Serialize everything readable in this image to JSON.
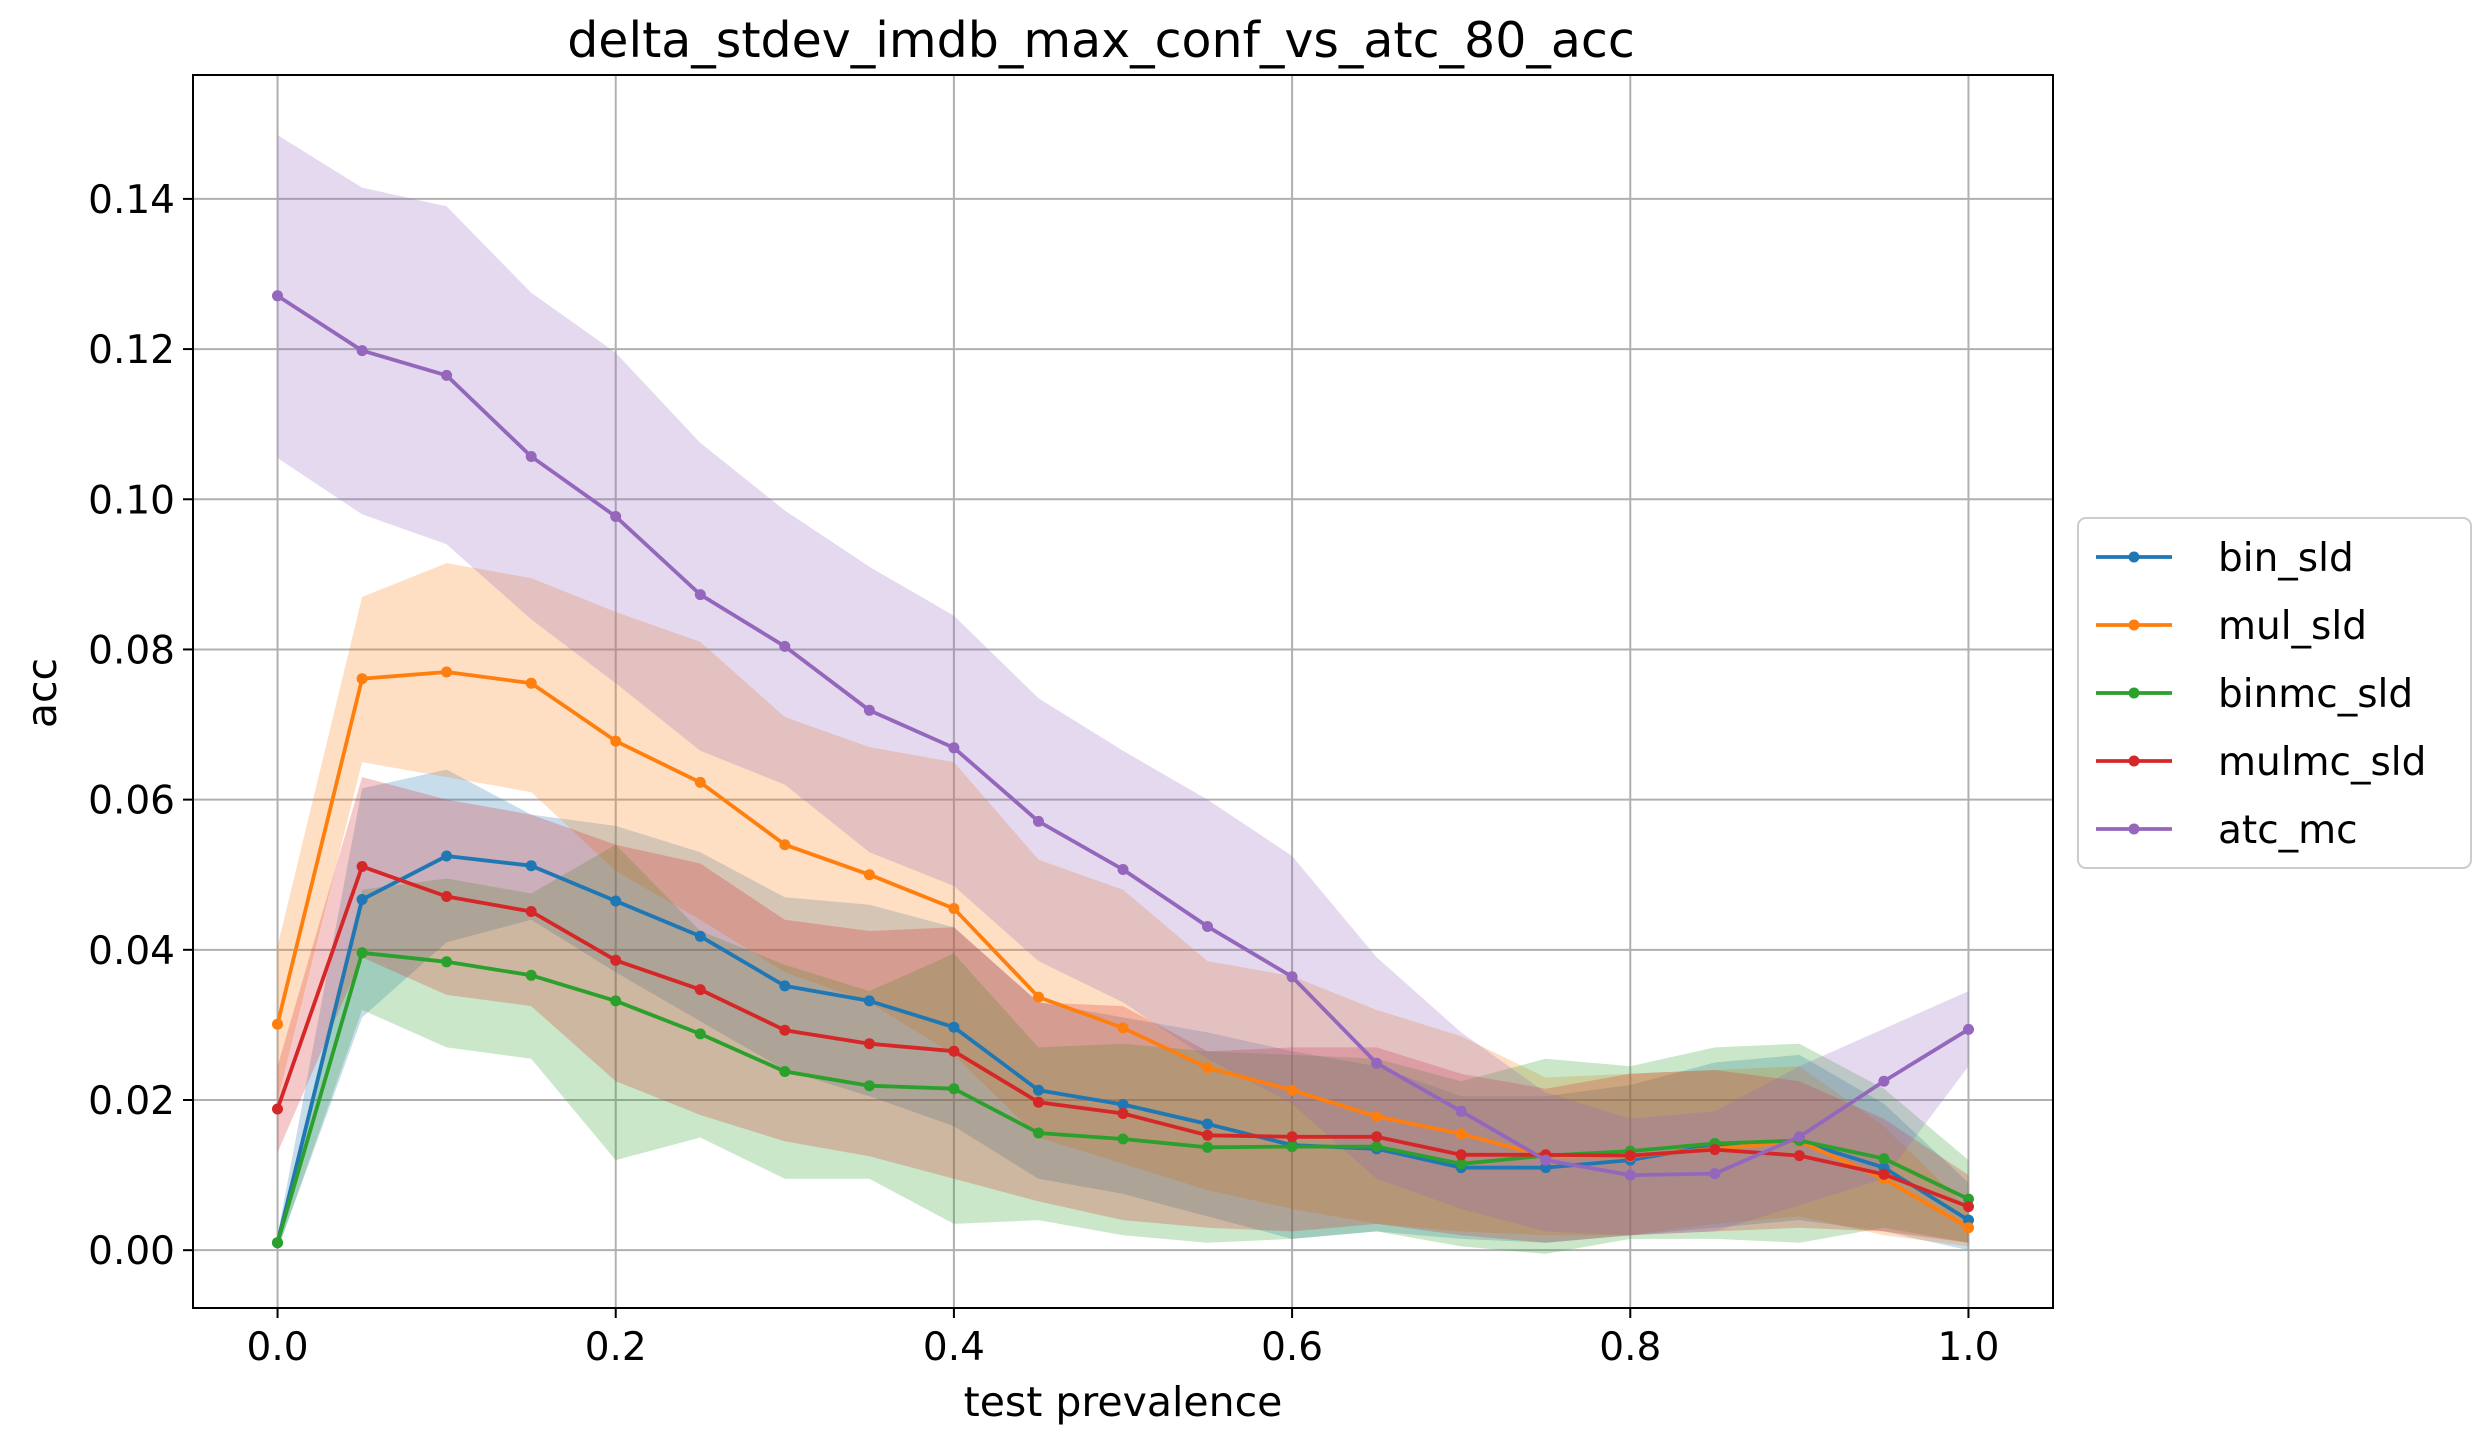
{
  "chart_data": {
    "type": "line",
    "title": "delta_stdev_imdb_max_conf_vs_atc_80_acc",
    "xlabel": "test prevalence",
    "ylabel": "acc",
    "xlim": [
      -0.05,
      1.05
    ],
    "ylim": [
      -0.0077,
      0.1565
    ],
    "xticks": [
      0.0,
      0.2,
      0.4,
      0.6,
      0.8,
      1.0
    ],
    "xtick_labels": [
      "0.0",
      "0.2",
      "0.4",
      "0.6",
      "0.8",
      "1.0"
    ],
    "yticks": [
      0.0,
      0.02,
      0.04,
      0.06,
      0.08,
      0.1,
      0.12,
      0.14
    ],
    "ytick_labels": [
      "0.00",
      "0.02",
      "0.04",
      "0.06",
      "0.08",
      "0.10",
      "0.12",
      "0.14"
    ],
    "grid": true,
    "legend_position": "outside-right",
    "x": [
      0.0,
      0.05,
      0.1,
      0.15,
      0.2,
      0.25,
      0.3,
      0.35,
      0.4,
      0.45,
      0.5,
      0.55,
      0.6,
      0.65,
      0.7,
      0.75,
      0.8,
      0.85,
      0.9,
      0.95,
      1.0
    ],
    "series": [
      {
        "name": "bin_sld",
        "color": "#1f77b4",
        "values": [
          0.001,
          0.0467,
          0.0525,
          0.0512,
          0.0465,
          0.0418,
          0.0352,
          0.0332,
          0.0297,
          0.0213,
          0.0194,
          0.0168,
          0.014,
          0.0135,
          0.011,
          0.011,
          0.012,
          0.014,
          0.0145,
          0.011,
          0.004
        ],
        "lower": [
          0.0,
          0.031,
          0.041,
          0.044,
          0.037,
          0.0305,
          0.024,
          0.0205,
          0.0165,
          0.0095,
          0.0075,
          0.0045,
          0.0015,
          0.0025,
          0.0015,
          0.001,
          0.002,
          0.003,
          0.004,
          0.0025,
          0.0
        ],
        "upper": [
          0.002,
          0.0615,
          0.064,
          0.058,
          0.0565,
          0.053,
          0.047,
          0.046,
          0.043,
          0.033,
          0.031,
          0.029,
          0.0265,
          0.0245,
          0.0205,
          0.0205,
          0.022,
          0.025,
          0.026,
          0.0195,
          0.009
        ]
      },
      {
        "name": "mul_sld",
        "color": "#ff7f0e",
        "values": [
          0.0301,
          0.0761,
          0.077,
          0.0755,
          0.0678,
          0.0623,
          0.054,
          0.05,
          0.0455,
          0.0337,
          0.0296,
          0.0243,
          0.0213,
          0.0178,
          0.0155,
          0.0125,
          0.0125,
          0.0135,
          0.0145,
          0.0095,
          0.003
        ],
        "lower": [
          0.02,
          0.065,
          0.063,
          0.061,
          0.0505,
          0.044,
          0.037,
          0.033,
          0.026,
          0.015,
          0.0115,
          0.008,
          0.0055,
          0.0035,
          0.0025,
          0.002,
          0.002,
          0.0035,
          0.0045,
          0.002,
          0.0005
        ],
        "upper": [
          0.0405,
          0.087,
          0.0915,
          0.0895,
          0.085,
          0.081,
          0.071,
          0.067,
          0.065,
          0.052,
          0.048,
          0.0385,
          0.0365,
          0.032,
          0.0285,
          0.023,
          0.0235,
          0.024,
          0.0245,
          0.0165,
          0.0055
        ]
      },
      {
        "name": "binmc_sld",
        "color": "#2ca02c",
        "values": [
          0.001,
          0.0396,
          0.0384,
          0.0366,
          0.0332,
          0.0288,
          0.0238,
          0.0219,
          0.0215,
          0.0156,
          0.0148,
          0.0137,
          0.0138,
          0.0138,
          0.0115,
          0.0126,
          0.0132,
          0.0142,
          0.0146,
          0.0122,
          0.0068
        ],
        "lower": [
          0.0,
          0.032,
          0.027,
          0.0255,
          0.012,
          0.015,
          0.0095,
          0.0095,
          0.0035,
          0.004,
          0.002,
          0.001,
          0.0015,
          0.0025,
          0.0005,
          -0.0005,
          0.0015,
          0.0015,
          0.001,
          0.003,
          0.001
        ],
        "upper": [
          0.002,
          0.048,
          0.0495,
          0.0475,
          0.054,
          0.0425,
          0.038,
          0.0345,
          0.0395,
          0.027,
          0.0275,
          0.0265,
          0.026,
          0.0255,
          0.0225,
          0.0255,
          0.0245,
          0.027,
          0.0275,
          0.0215,
          0.012
        ]
      },
      {
        "name": "mulmc_sld",
        "color": "#d62728",
        "values": [
          0.0188,
          0.0511,
          0.0471,
          0.0451,
          0.0386,
          0.0347,
          0.0293,
          0.0275,
          0.0265,
          0.0197,
          0.0182,
          0.0153,
          0.0151,
          0.0151,
          0.0127,
          0.0127,
          0.0126,
          0.0134,
          0.0126,
          0.0101,
          0.0058
        ],
        "lower": [
          0.013,
          0.039,
          0.034,
          0.0325,
          0.0225,
          0.018,
          0.0145,
          0.0125,
          0.0095,
          0.0065,
          0.004,
          0.003,
          0.0025,
          0.0035,
          0.002,
          0.001,
          0.002,
          0.0025,
          0.003,
          0.0025,
          0.001
        ],
        "upper": [
          0.0245,
          0.063,
          0.06,
          0.058,
          0.054,
          0.0515,
          0.044,
          0.0425,
          0.043,
          0.033,
          0.0325,
          0.0265,
          0.027,
          0.027,
          0.0235,
          0.0215,
          0.0235,
          0.024,
          0.0225,
          0.0175,
          0.01
        ]
      },
      {
        "name": "atc_mc",
        "color": "#9467bd",
        "values": [
          0.1271,
          0.1198,
          0.1165,
          0.1057,
          0.0977,
          0.0873,
          0.0804,
          0.0719,
          0.0669,
          0.0571,
          0.0507,
          0.0431,
          0.0364,
          0.0249,
          0.0185,
          0.012,
          0.01,
          0.0102,
          0.0151,
          0.0225,
          0.0294
        ],
        "lower": [
          0.1055,
          0.098,
          0.094,
          0.084,
          0.0755,
          0.0665,
          0.062,
          0.053,
          0.0485,
          0.0385,
          0.033,
          0.0255,
          0.0195,
          0.0095,
          0.0055,
          0.0025,
          0.002,
          0.0025,
          0.006,
          0.0095,
          0.0245
        ],
        "upper": [
          0.1485,
          0.1415,
          0.139,
          0.1275,
          0.1195,
          0.1075,
          0.0985,
          0.091,
          0.0845,
          0.0735,
          0.0665,
          0.06,
          0.0525,
          0.039,
          0.029,
          0.021,
          0.0175,
          0.0185,
          0.0245,
          0.0295,
          0.0345
        ]
      }
    ]
  }
}
